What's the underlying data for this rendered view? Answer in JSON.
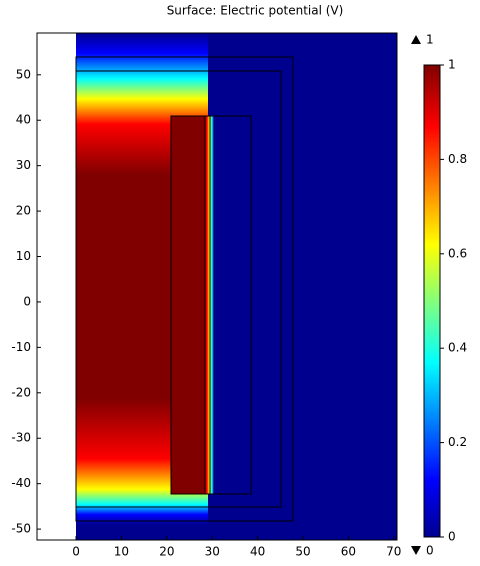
{
  "chart_data": {
    "type": "surface",
    "title": "Surface: Electric potential (V)",
    "xlim": [
      -8.6,
      70.7
    ],
    "xticks": [
      0,
      10,
      20,
      30,
      40,
      50,
      60,
      70
    ],
    "ylim": [
      -52.4,
      59.2
    ],
    "yticks": [
      -50,
      -40,
      -30,
      -20,
      -10,
      0,
      10,
      20,
      30,
      40,
      50
    ],
    "colorbar": {
      "lim": [
        0,
        1
      ],
      "ticks": [
        0,
        0.2,
        0.4,
        0.6,
        0.8,
        1
      ]
    },
    "max": 1,
    "min": 0
  }
}
